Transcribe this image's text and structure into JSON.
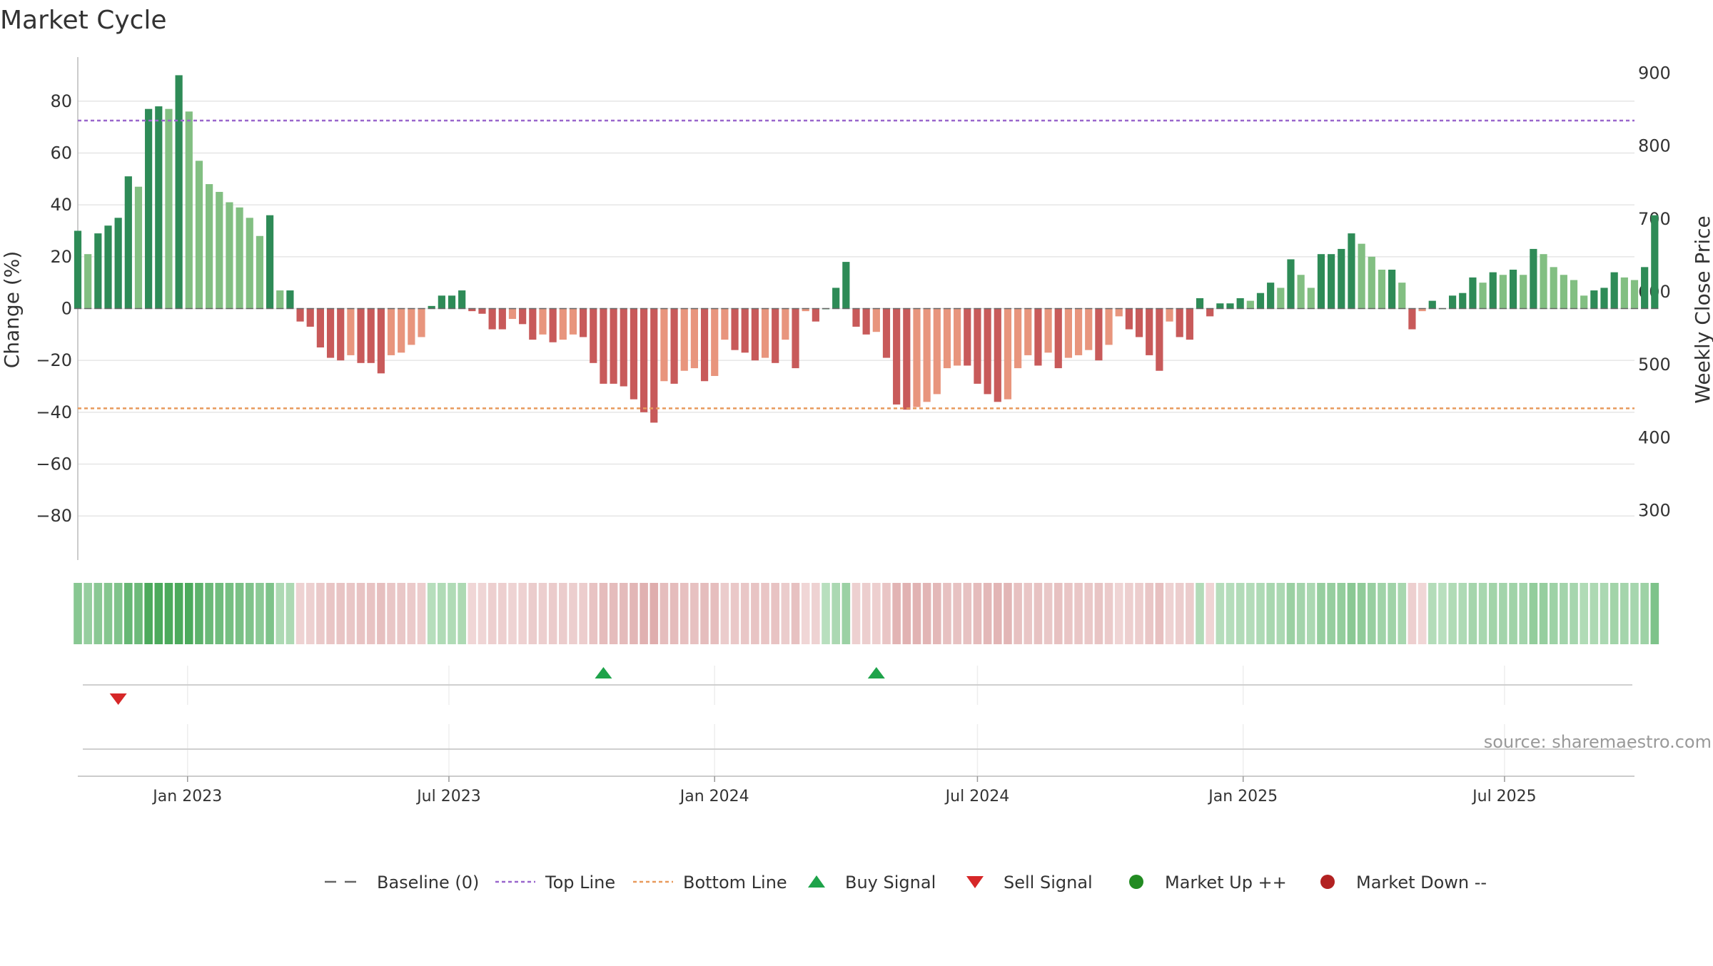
{
  "chart_data": {
    "type": "bar",
    "title": "Market Cycle",
    "ylabel": "Change (%)",
    "y2label": "Weekly Close Price",
    "ylim": [
      -97,
      97
    ],
    "y2lim": [
      232,
      922
    ],
    "yticks": [
      80,
      60,
      40,
      20,
      0,
      -20,
      -40,
      -60,
      -80
    ],
    "ytick_labels": [
      "80",
      "60",
      "40",
      "20",
      "0",
      "−20",
      "−40",
      "−60",
      "−80"
    ],
    "y2ticks": [
      900,
      800,
      700,
      600,
      500,
      400,
      300
    ],
    "x_start": "2022-10-17",
    "x_end": "2025-09-29",
    "xtick_dates": [
      "2023-01-01",
      "2023-07-01",
      "2024-01-01",
      "2024-07-01",
      "2025-01-01",
      "2025-07-01"
    ],
    "xtick_labels": [
      "Jan 2023",
      "Jul 2023",
      "Jan 2024",
      "Jul 2024",
      "Jan 2025",
      "Jul 2025"
    ],
    "top_line": 72.5,
    "bottom_line": -38.5,
    "bar_start": "2022-10-17",
    "bar_interval_days": 7,
    "values": [
      30,
      21,
      29,
      32,
      35,
      51,
      47,
      77,
      78,
      77,
      90,
      76,
      57,
      48,
      45,
      41,
      39,
      35,
      28,
      36,
      7,
      7,
      -5,
      -7,
      -15,
      -19,
      -20,
      -18,
      -21,
      -21,
      -25,
      -18,
      -17,
      -14,
      -11,
      1,
      5,
      5,
      7,
      -1,
      -2,
      -8,
      -8,
      -4,
      -6,
      -12,
      -10,
      -13,
      -12,
      -10,
      -11,
      -21,
      -29,
      -29,
      -30,
      -35,
      -40,
      -44,
      -28,
      -29,
      -24,
      -23,
      -28,
      -26,
      -12,
      -16,
      -17,
      -20,
      -19,
      -21,
      -12,
      -23,
      -1,
      -5,
      0,
      8,
      18,
      -7,
      -10,
      -9,
      -19,
      -37,
      -39,
      -38,
      -36,
      -33,
      -23,
      -22,
      -22,
      -29,
      -33,
      -36,
      -35,
      -23,
      -18,
      -22,
      -17,
      -23,
      -19,
      -18,
      -16,
      -20,
      -14,
      -3,
      -8,
      -11,
      -18,
      -24,
      -5,
      -11,
      -12,
      4,
      -3,
      2,
      2,
      4,
      3,
      6,
      10,
      8,
      19,
      13,
      8,
      21,
      21,
      23,
      29,
      25,
      20,
      15,
      15,
      10,
      -8,
      -1,
      3,
      0,
      5,
      6,
      12,
      10,
      14,
      13,
      15,
      13,
      23,
      21,
      16,
      13,
      11,
      5,
      7,
      8,
      14,
      12,
      11,
      16,
      36
    ],
    "colors": {
      "up_strong": "#2e8b57",
      "up_weak": "#82bf82",
      "down_strong": "#c85a5a",
      "down_weak": "#e8957d",
      "top_line": "#9966cc",
      "bottom_line": "#e89a5c",
      "baseline": "#666666",
      "buy": "#1ea34a",
      "sell": "#d62728",
      "market_up": "#228b22",
      "market_down": "#b22222"
    },
    "signals": [
      {
        "type": "sell",
        "date": "2022-11-14"
      },
      {
        "type": "buy",
        "date": "2023-10-16"
      },
      {
        "type": "buy",
        "date": "2024-04-22"
      }
    ],
    "legend_position": "bottom-center",
    "legend": [
      {
        "key": "baseline",
        "label": "Baseline (0)"
      },
      {
        "key": "top",
        "label": "Top Line"
      },
      {
        "key": "bottom",
        "label": "Bottom Line"
      },
      {
        "key": "buy",
        "label": "Buy Signal"
      },
      {
        "key": "sell",
        "label": "Sell Signal"
      },
      {
        "key": "up",
        "label": "Market Up ++"
      },
      {
        "key": "down",
        "label": "Market Down --"
      }
    ],
    "annotation": "source: sharemaestro.com",
    "grid": true
  }
}
